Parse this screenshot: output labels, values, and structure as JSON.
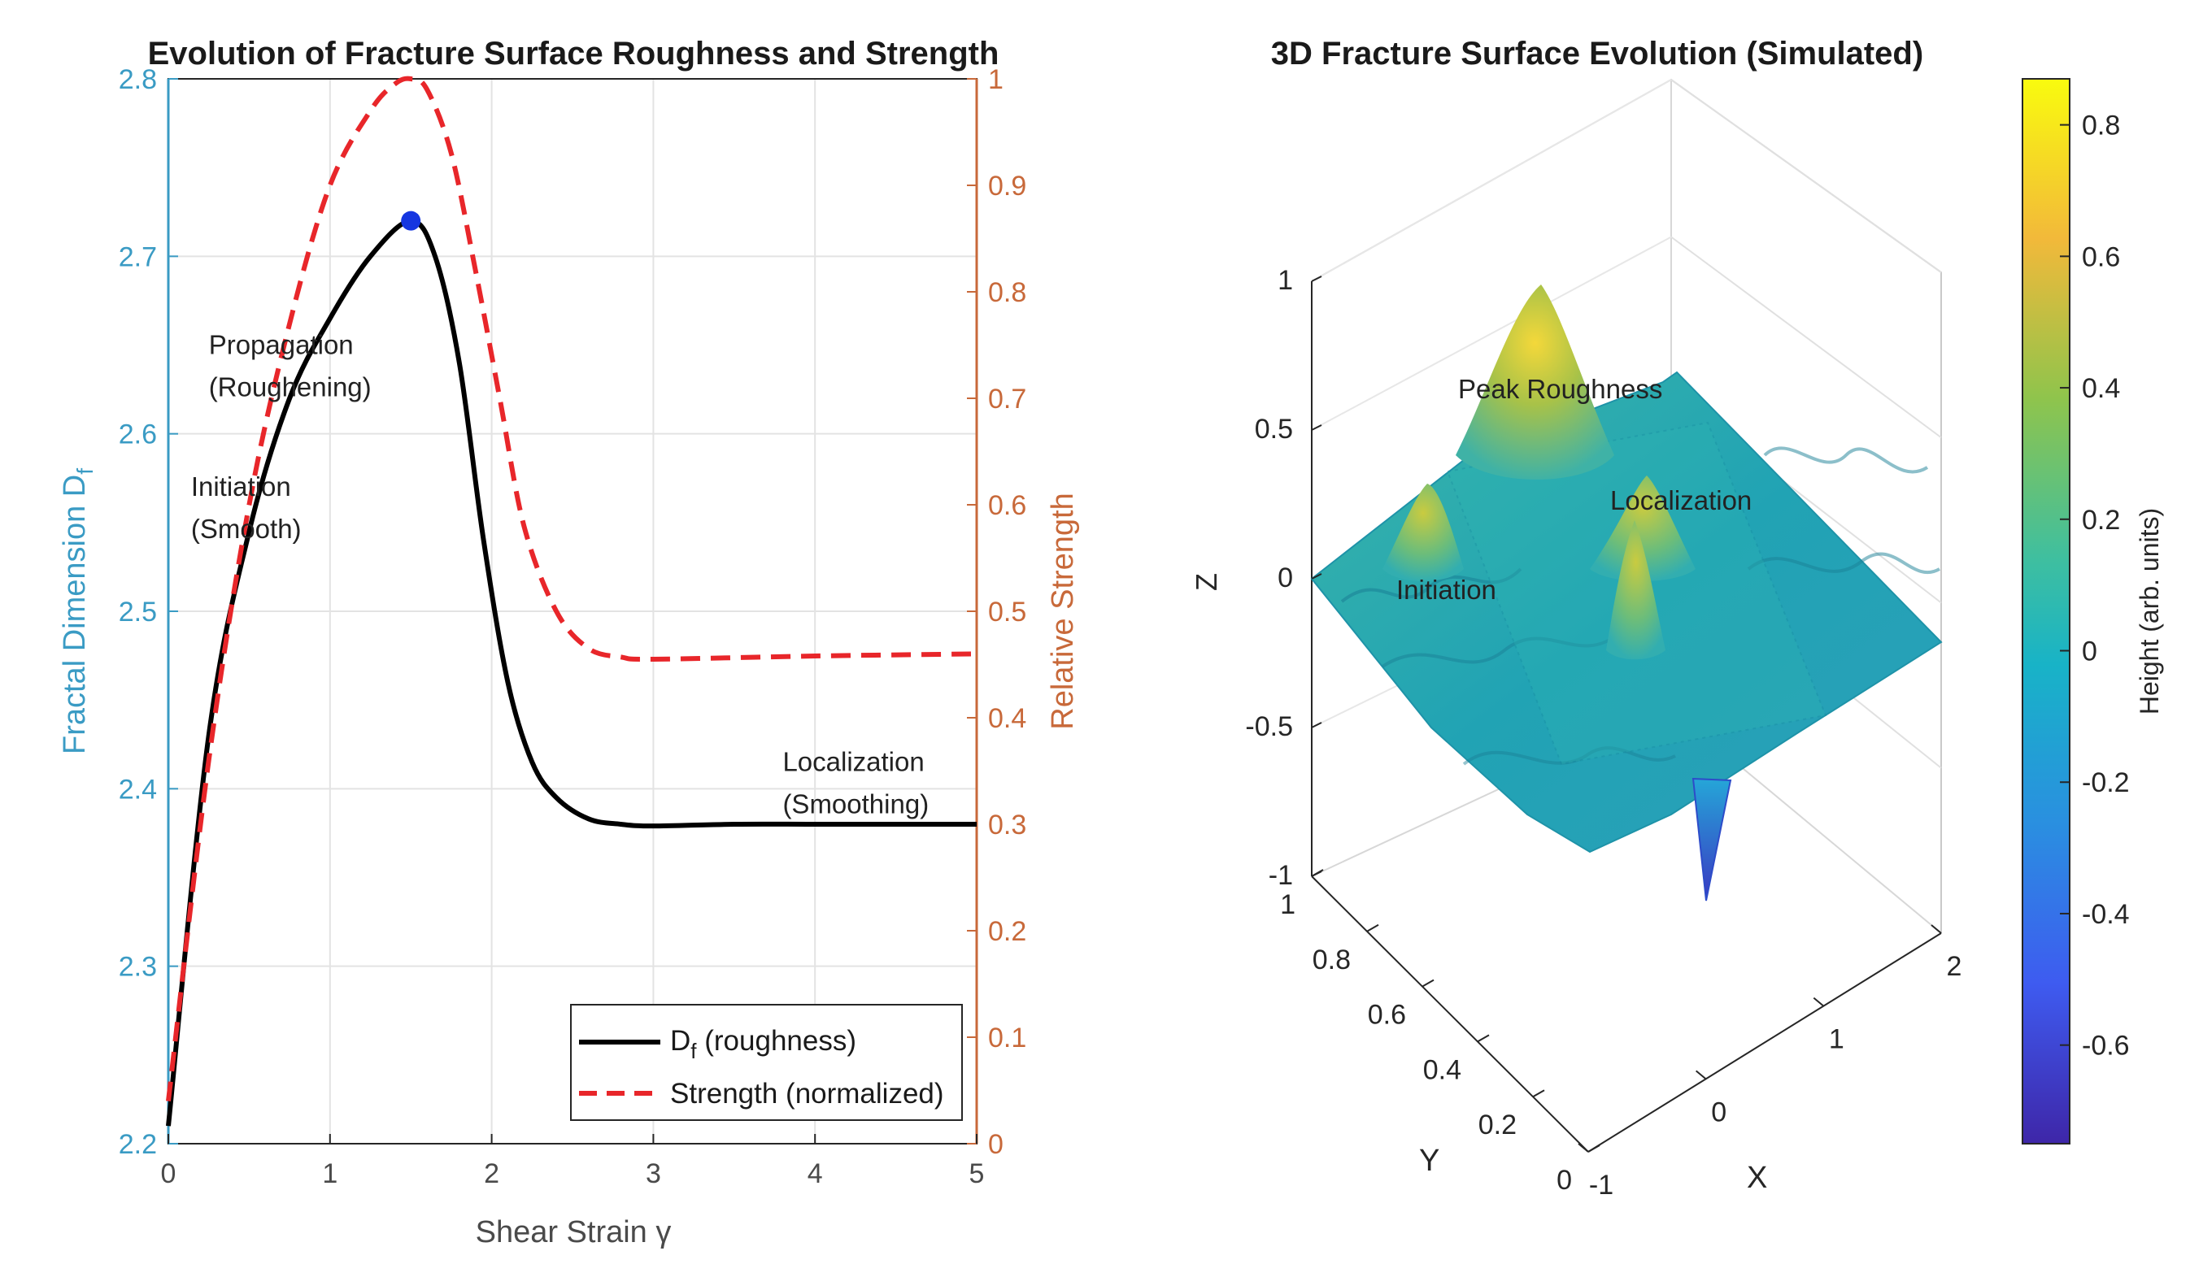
{
  "chart_data": [
    {
      "type": "line",
      "title": "Evolution of Fracture Surface Roughness and Strength",
      "xlabel": "Shear Strain γ",
      "xlim": [
        0,
        5
      ],
      "xticks": [
        0,
        1,
        2,
        3,
        4,
        5
      ],
      "y_left": {
        "label": "Fractal Dimension D",
        "label_sub": "f",
        "lim": [
          2.2,
          2.8
        ],
        "ticks": [
          "2.2",
          "2.3",
          "2.4",
          "2.5",
          "2.6",
          "2.7",
          "2.8"
        ],
        "color": "#3a9bc4"
      },
      "y_right": {
        "label": "Relative Strength",
        "lim": [
          0,
          1
        ],
        "ticks": [
          "0",
          "0.1",
          "0.2",
          "0.3",
          "0.4",
          "0.5",
          "0.6",
          "0.7",
          "0.8",
          "0.9",
          "1"
        ],
        "color": "#c8693a"
      },
      "grid": true,
      "series": [
        {
          "name": "D (roughness)",
          "legend_main": "D",
          "legend_sub": "f",
          "legend_rest": " (roughness)",
          "axis": "left",
          "color": "#000000",
          "style": "solid",
          "x": [
            0,
            0.25,
            0.5,
            0.75,
            1.0,
            1.25,
            1.5,
            1.65,
            1.8,
            1.95,
            2.1,
            2.25,
            2.4,
            2.6,
            2.8,
            3.0,
            3.5,
            4.0,
            4.5,
            5.0
          ],
          "y": [
            2.21,
            2.43,
            2.545,
            2.62,
            2.665,
            2.7,
            2.72,
            2.7,
            2.64,
            2.54,
            2.46,
            2.415,
            2.395,
            2.383,
            2.38,
            2.379,
            2.38,
            2.38,
            2.38,
            2.38
          ]
        },
        {
          "name": "Strength (normalized)",
          "legend_main": "Strength (normalized)",
          "axis": "right",
          "color": "#e8262a",
          "style": "dashed",
          "x": [
            0,
            0.25,
            0.5,
            0.75,
            1.0,
            1.25,
            1.4,
            1.5,
            1.6,
            1.75,
            1.9,
            2.05,
            2.2,
            2.4,
            2.6,
            2.8,
            3.0,
            4.0,
            5.0
          ],
          "y": [
            0.04,
            0.36,
            0.6,
            0.77,
            0.9,
            0.97,
            0.995,
            1.0,
            0.99,
            0.93,
            0.82,
            0.7,
            0.58,
            0.5,
            0.465,
            0.457,
            0.455,
            0.458,
            0.46
          ]
        }
      ],
      "markers": [
        {
          "x": 1.5,
          "y": 2.72,
          "axis": "left",
          "color": "#1536e0"
        }
      ],
      "annotations": [
        {
          "lines": [
            "Propagation",
            "(Roughening)"
          ],
          "x": 0.25,
          "y": 2.645
        },
        {
          "lines": [
            "Initiation",
            "(Smooth)"
          ],
          "x": 0.14,
          "y": 2.565
        },
        {
          "lines": [
            "Localization",
            "(Smoothing)"
          ],
          "x": 3.8,
          "y": 2.41
        }
      ],
      "legend_position": "bottom-right"
    },
    {
      "type": "surface3d",
      "title": "3D Fracture Surface Evolution (Simulated)",
      "xlabel": "X",
      "ylabel": "Y",
      "zlabel": "Z",
      "xlim": [
        -1,
        2
      ],
      "xticks": [
        "-1",
        "0",
        "1",
        "2"
      ],
      "ylim": [
        0,
        1
      ],
      "yticks": [
        "0",
        "0.2",
        "0.4",
        "0.6",
        "0.8",
        "1"
      ],
      "zlim": [
        -1,
        1
      ],
      "zticks": [
        "-1",
        "-0.5",
        "0",
        "0.5",
        "1"
      ],
      "annotations": [
        "Peak Roughness",
        "Localization",
        "Initiation"
      ],
      "colorbar": {
        "label": "Height (arb. units)",
        "range": [
          -0.75,
          0.87
        ],
        "ticks": [
          "-0.6",
          "-0.4",
          "-0.2",
          "0",
          "0.2",
          "0.4",
          "0.6",
          "0.8"
        ],
        "colormap": "parula"
      }
    }
  ]
}
